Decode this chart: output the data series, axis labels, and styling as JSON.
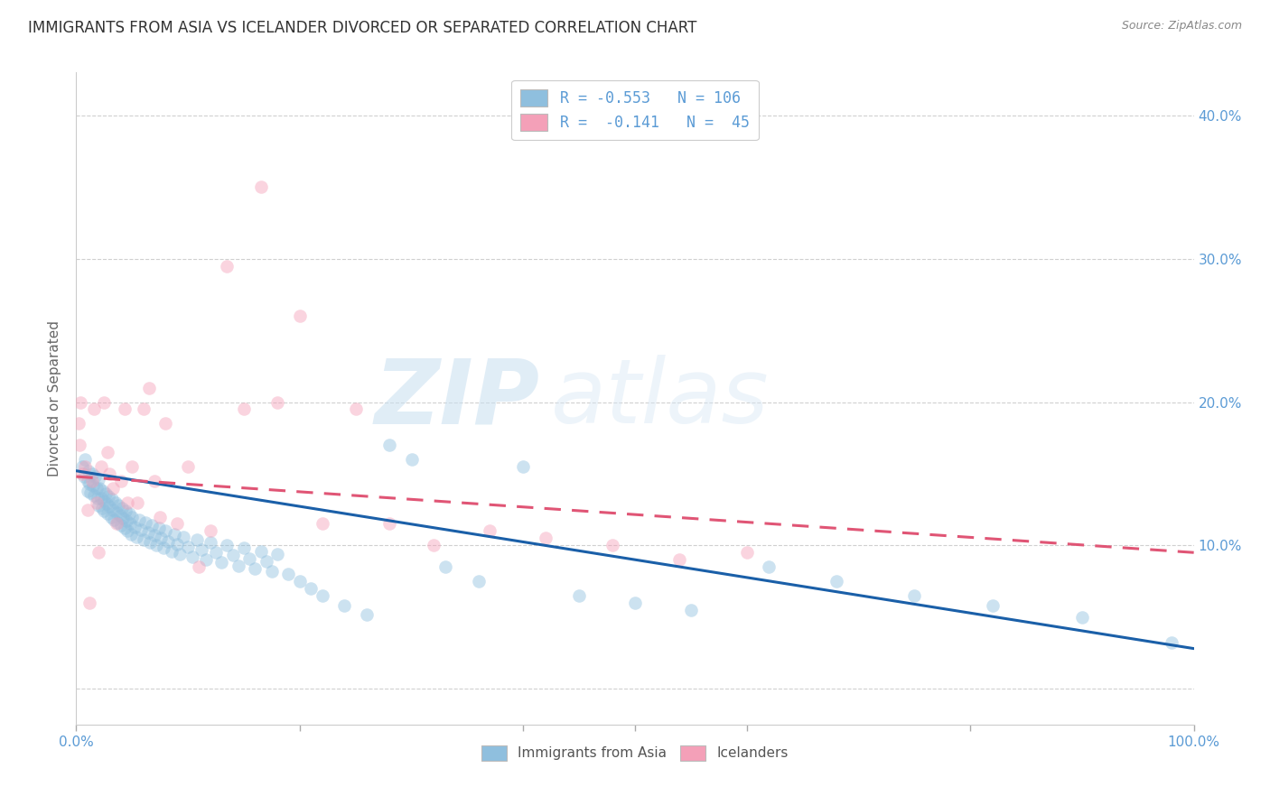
{
  "title": "IMMIGRANTS FROM ASIA VS ICELANDER DIVORCED OR SEPARATED CORRELATION CHART",
  "source": "Source: ZipAtlas.com",
  "ylabel": "Divorced or Separated",
  "ytick_labels": [
    "",
    "10.0%",
    "20.0%",
    "30.0%",
    "40.0%"
  ],
  "ytick_values": [
    0.0,
    0.1,
    0.2,
    0.3,
    0.4
  ],
  "xmin": 0.0,
  "xmax": 1.0,
  "ymin": -0.025,
  "ymax": 0.43,
  "legend_label_1": "R = -0.553   N = 106",
  "legend_label_2": "R =  -0.141   N =  45",
  "watermark_zip": "ZIP",
  "watermark_atlas": "atlas",
  "blue_scatter_x": [
    0.005,
    0.007,
    0.008,
    0.01,
    0.01,
    0.011,
    0.012,
    0.013,
    0.014,
    0.015,
    0.016,
    0.017,
    0.018,
    0.019,
    0.02,
    0.02,
    0.021,
    0.022,
    0.023,
    0.024,
    0.025,
    0.025,
    0.026,
    0.027,
    0.028,
    0.029,
    0.03,
    0.031,
    0.032,
    0.033,
    0.034,
    0.035,
    0.036,
    0.037,
    0.038,
    0.039,
    0.04,
    0.041,
    0.042,
    0.043,
    0.044,
    0.045,
    0.046,
    0.047,
    0.048,
    0.049,
    0.05,
    0.052,
    0.054,
    0.056,
    0.058,
    0.06,
    0.062,
    0.064,
    0.066,
    0.068,
    0.07,
    0.072,
    0.074,
    0.076,
    0.078,
    0.08,
    0.082,
    0.085,
    0.088,
    0.09,
    0.093,
    0.096,
    0.1,
    0.104,
    0.108,
    0.112,
    0.116,
    0.12,
    0.125,
    0.13,
    0.135,
    0.14,
    0.145,
    0.15,
    0.155,
    0.16,
    0.165,
    0.17,
    0.175,
    0.18,
    0.19,
    0.2,
    0.21,
    0.22,
    0.24,
    0.26,
    0.28,
    0.3,
    0.33,
    0.36,
    0.4,
    0.45,
    0.5,
    0.55,
    0.62,
    0.68,
    0.75,
    0.82,
    0.9,
    0.98
  ],
  "blue_scatter_y": [
    0.155,
    0.148,
    0.16,
    0.145,
    0.138,
    0.152,
    0.143,
    0.137,
    0.15,
    0.142,
    0.135,
    0.148,
    0.14,
    0.133,
    0.146,
    0.128,
    0.14,
    0.133,
    0.126,
    0.138,
    0.131,
    0.124,
    0.136,
    0.129,
    0.122,
    0.134,
    0.127,
    0.12,
    0.132,
    0.125,
    0.118,
    0.13,
    0.123,
    0.116,
    0.128,
    0.121,
    0.114,
    0.126,
    0.119,
    0.112,
    0.124,
    0.117,
    0.11,
    0.122,
    0.115,
    0.108,
    0.12,
    0.113,
    0.106,
    0.118,
    0.111,
    0.104,
    0.116,
    0.109,
    0.102,
    0.114,
    0.107,
    0.1,
    0.112,
    0.105,
    0.098,
    0.11,
    0.103,
    0.096,
    0.108,
    0.101,
    0.094,
    0.106,
    0.099,
    0.092,
    0.104,
    0.097,
    0.09,
    0.102,
    0.095,
    0.088,
    0.1,
    0.093,
    0.086,
    0.098,
    0.091,
    0.084,
    0.096,
    0.089,
    0.082,
    0.094,
    0.08,
    0.075,
    0.07,
    0.065,
    0.058,
    0.052,
    0.17,
    0.16,
    0.085,
    0.075,
    0.155,
    0.065,
    0.06,
    0.055,
    0.085,
    0.075,
    0.065,
    0.058,
    0.05,
    0.032
  ],
  "pink_scatter_x": [
    0.005,
    0.008,
    0.01,
    0.012,
    0.014,
    0.016,
    0.018,
    0.02,
    0.022,
    0.025,
    0.028,
    0.03,
    0.033,
    0.036,
    0.04,
    0.043,
    0.046,
    0.05,
    0.055,
    0.06,
    0.065,
    0.07,
    0.075,
    0.08,
    0.09,
    0.1,
    0.11,
    0.12,
    0.135,
    0.15,
    0.165,
    0.18,
    0.2,
    0.22,
    0.25,
    0.28,
    0.32,
    0.37,
    0.42,
    0.48,
    0.54,
    0.6,
    0.002,
    0.003,
    0.004
  ],
  "pink_scatter_y": [
    0.15,
    0.155,
    0.125,
    0.06,
    0.145,
    0.195,
    0.13,
    0.095,
    0.155,
    0.2,
    0.165,
    0.15,
    0.14,
    0.115,
    0.145,
    0.195,
    0.13,
    0.155,
    0.13,
    0.195,
    0.21,
    0.145,
    0.12,
    0.185,
    0.115,
    0.155,
    0.085,
    0.11,
    0.295,
    0.195,
    0.35,
    0.2,
    0.26,
    0.115,
    0.195,
    0.115,
    0.1,
    0.11,
    0.105,
    0.1,
    0.09,
    0.095,
    0.185,
    0.17,
    0.2
  ],
  "blue_line_y_start": 0.152,
  "blue_line_y_end": 0.028,
  "pink_line_y_start": 0.148,
  "pink_line_y_end": 0.095,
  "scatter_size": 110,
  "scatter_alpha": 0.45,
  "blue_scatter_color": "#8fbfde",
  "pink_scatter_color": "#f4a0b8",
  "blue_line_color": "#1a5fa8",
  "pink_line_color": "#e05575",
  "grid_color": "#d0d0d0",
  "background_color": "#ffffff",
  "right_axis_color": "#5b9bd5",
  "title_fontsize": 12,
  "axis_label_fontsize": 11,
  "tick_fontsize": 11
}
